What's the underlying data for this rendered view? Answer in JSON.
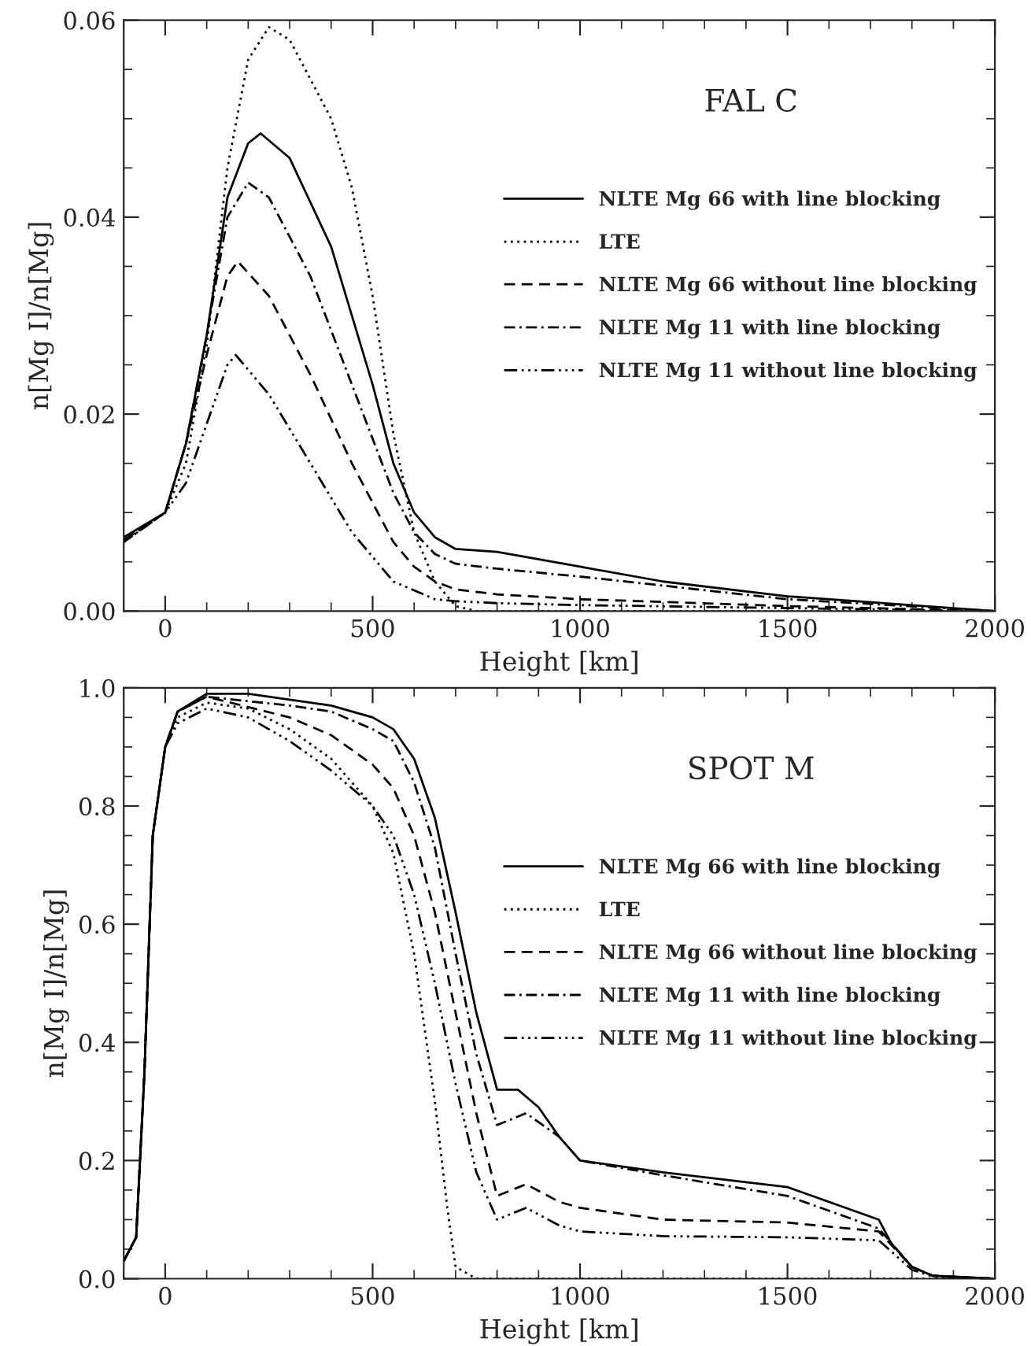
{
  "chart_data": [
    {
      "type": "line",
      "title": "FAL C",
      "xlabel": "Height [km]",
      "ylabel": "n[Mg I]/n[Mg]",
      "xlim": [
        -100,
        2000
      ],
      "xticks": [
        0,
        500,
        1000,
        1500,
        2000
      ],
      "ylim": [
        0,
        0.06
      ],
      "yticks": [
        {
          "value": 0,
          "label": "0.00"
        },
        {
          "value": 0.02,
          "label": "0.02"
        },
        {
          "value": 0.04,
          "label": "0.04"
        },
        {
          "value": 0.06,
          "label": "0.06"
        }
      ],
      "grid": false,
      "legend": "right",
      "series": [
        {
          "name": "NLTE Mg 66 with line blocking",
          "color": "#000000",
          "line_style": "solid",
          "x": [
            -100,
            0,
            50,
            100,
            150,
            200,
            230,
            300,
            400,
            500,
            550,
            600,
            650,
            700,
            800,
            1000,
            1200,
            1500,
            1800,
            2000
          ],
          "values": [
            0.0075,
            0.01,
            0.017,
            0.028,
            0.042,
            0.0475,
            0.0485,
            0.046,
            0.037,
            0.023,
            0.015,
            0.01,
            0.0075,
            0.0063,
            0.006,
            0.0045,
            0.003,
            0.0015,
            0.0006,
            0.0
          ]
        },
        {
          "name": "LTE",
          "color": "#000000",
          "line_style": "dotted",
          "x": [
            -100,
            0,
            50,
            100,
            150,
            200,
            250,
            300,
            400,
            450,
            500,
            550,
            600,
            650,
            700,
            750,
            2000
          ],
          "values": [
            0.007,
            0.01,
            0.015,
            0.027,
            0.045,
            0.056,
            0.0593,
            0.058,
            0.05,
            0.043,
            0.032,
            0.018,
            0.008,
            0.003,
            0.0005,
            0.0,
            0.0
          ]
        },
        {
          "name": "NLTE Mg 66 without line blocking",
          "color": "#000000",
          "line_style": "dashed",
          "x": [
            -100,
            0,
            50,
            100,
            150,
            175,
            250,
            350,
            450,
            550,
            600,
            650,
            700,
            800,
            1000,
            1500,
            2000
          ],
          "values": [
            0.0072,
            0.01,
            0.017,
            0.026,
            0.034,
            0.0355,
            0.032,
            0.024,
            0.015,
            0.007,
            0.0045,
            0.003,
            0.0022,
            0.0017,
            0.0012,
            0.0005,
            0.0
          ]
        },
        {
          "name": "NLTE Mg 11 with line blocking",
          "color": "#000000",
          "line_style": "dashdot",
          "x": [
            -100,
            0,
            50,
            100,
            150,
            200,
            250,
            350,
            450,
            550,
            600,
            650,
            700,
            800,
            1000,
            1500,
            2000
          ],
          "values": [
            0.007,
            0.01,
            0.017,
            0.028,
            0.04,
            0.0435,
            0.042,
            0.034,
            0.023,
            0.012,
            0.008,
            0.0058,
            0.0048,
            0.0043,
            0.0035,
            0.0012,
            0.0
          ]
        },
        {
          "name": "NLTE Mg 11 without line blocking",
          "color": "#000000",
          "line_style": "dashdotdot",
          "x": [
            -100,
            0,
            50,
            100,
            150,
            170,
            250,
            350,
            450,
            550,
            650,
            700,
            800,
            1000,
            1500,
            2000
          ],
          "values": [
            0.0072,
            0.01,
            0.013,
            0.019,
            0.025,
            0.026,
            0.022,
            0.015,
            0.008,
            0.003,
            0.0012,
            0.001,
            0.0008,
            0.0006,
            0.0003,
            0.0
          ]
        }
      ]
    },
    {
      "type": "line",
      "title": "SPOT M",
      "xlabel": "Height [km]",
      "ylabel": "n[Mg I]/n[Mg]",
      "xlim": [
        -100,
        2000
      ],
      "xticks": [
        0,
        500,
        1000,
        1500,
        2000
      ],
      "ylim": [
        0,
        1.0
      ],
      "yticks": [
        {
          "value": 0,
          "label": "0.0"
        },
        0.2,
        0.4,
        0.6,
        0.8,
        {
          "value": 1.0,
          "label": "1.0"
        }
      ],
      "grid": false,
      "legend": "right",
      "series": [
        {
          "name": "NLTE Mg 66 with line blocking",
          "color": "#000000",
          "line_style": "solid",
          "x": [
            -100,
            -70,
            -50,
            -30,
            0,
            30,
            100,
            200,
            300,
            400,
            500,
            550,
            600,
            650,
            700,
            750,
            800,
            850,
            900,
            950,
            1000,
            1200,
            1500,
            1720,
            1750,
            1800,
            1850,
            2000
          ],
          "values": [
            0.03,
            0.07,
            0.35,
            0.75,
            0.9,
            0.96,
            0.99,
            0.99,
            0.98,
            0.97,
            0.95,
            0.93,
            0.88,
            0.78,
            0.62,
            0.45,
            0.32,
            0.32,
            0.29,
            0.24,
            0.2,
            0.18,
            0.155,
            0.1,
            0.06,
            0.02,
            0.005,
            0.0
          ]
        },
        {
          "name": "LTE",
          "color": "#000000",
          "line_style": "dotted",
          "x": [
            -100,
            -70,
            -50,
            -30,
            0,
            30,
            100,
            200,
            300,
            400,
            500,
            550,
            600,
            650,
            680,
            700,
            750,
            2000
          ],
          "values": [
            0.03,
            0.07,
            0.35,
            0.75,
            0.9,
            0.95,
            0.975,
            0.965,
            0.93,
            0.88,
            0.8,
            0.72,
            0.55,
            0.3,
            0.12,
            0.02,
            0.0,
            0.0
          ]
        },
        {
          "name": "NLTE Mg 66 without line blocking",
          "color": "#000000",
          "line_style": "dashed",
          "x": [
            -100,
            -70,
            -50,
            -30,
            0,
            30,
            100,
            300,
            400,
            500,
            550,
            600,
            650,
            700,
            750,
            800,
            870,
            950,
            1000,
            1200,
            1500,
            1720,
            1800,
            1850,
            2000
          ],
          "values": [
            0.03,
            0.07,
            0.35,
            0.75,
            0.9,
            0.96,
            0.985,
            0.95,
            0.92,
            0.87,
            0.83,
            0.75,
            0.62,
            0.45,
            0.28,
            0.14,
            0.16,
            0.13,
            0.12,
            0.1,
            0.095,
            0.08,
            0.02,
            0.005,
            0.0
          ]
        },
        {
          "name": "NLTE Mg 11 with line blocking",
          "color": "#000000",
          "line_style": "dashdot",
          "x": [
            -100,
            -70,
            -50,
            -30,
            0,
            30,
            100,
            300,
            400,
            500,
            550,
            600,
            650,
            700,
            750,
            800,
            870,
            950,
            1000,
            1200,
            1500,
            1720,
            1800,
            1850,
            2000
          ],
          "values": [
            0.03,
            0.07,
            0.35,
            0.75,
            0.9,
            0.96,
            0.985,
            0.97,
            0.96,
            0.93,
            0.91,
            0.84,
            0.73,
            0.55,
            0.38,
            0.26,
            0.28,
            0.24,
            0.2,
            0.175,
            0.14,
            0.085,
            0.02,
            0.005,
            0.0
          ]
        },
        {
          "name": "NLTE Mg 11 without line blocking",
          "color": "#000000",
          "line_style": "dashdotdot",
          "x": [
            -100,
            -70,
            -50,
            -30,
            0,
            30,
            100,
            200,
            300,
            400,
            500,
            550,
            600,
            650,
            700,
            750,
            800,
            870,
            950,
            1000,
            1200,
            1500,
            1720,
            1800,
            1850,
            2000
          ],
          "values": [
            0.03,
            0.07,
            0.35,
            0.75,
            0.9,
            0.94,
            0.965,
            0.95,
            0.91,
            0.86,
            0.8,
            0.75,
            0.65,
            0.5,
            0.33,
            0.18,
            0.1,
            0.12,
            0.09,
            0.08,
            0.072,
            0.07,
            0.065,
            0.015,
            0.004,
            0.0
          ]
        }
      ]
    }
  ]
}
